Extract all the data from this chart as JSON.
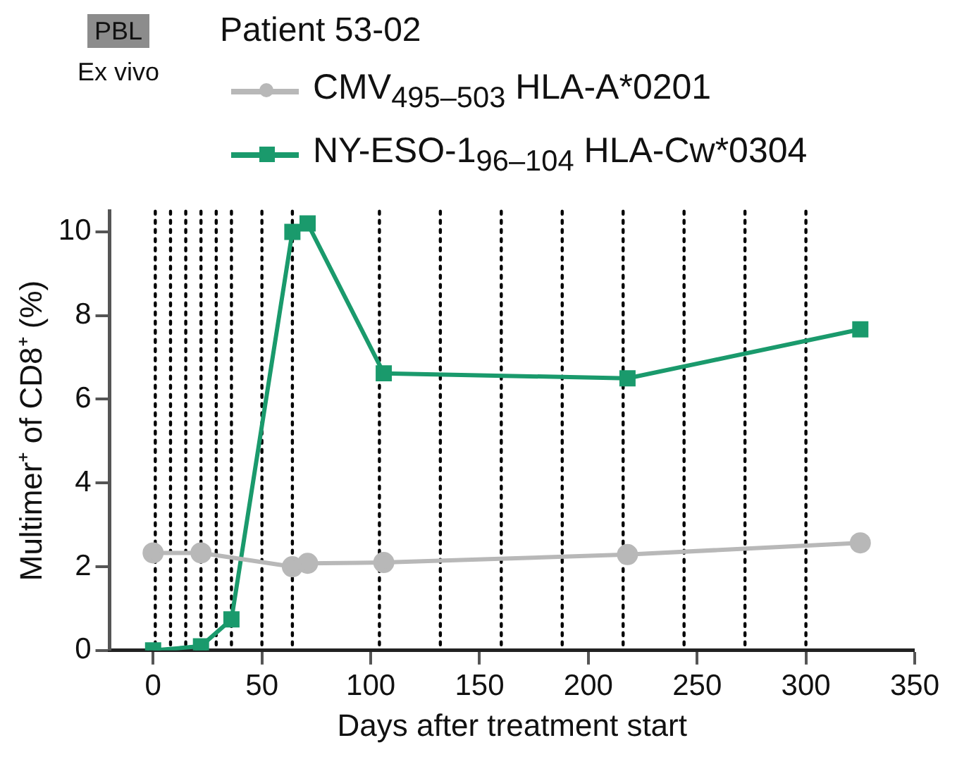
{
  "chart_data": {
    "type": "line",
    "title": "Patient 53-02",
    "annotations": [
      "PBL",
      "Ex vivo"
    ],
    "xlabel": "Days after treatment start",
    "ylabel": "Multimer⁺ of CD8⁺ (%)",
    "series": [
      {
        "name": "CMV$_{495–503}$ HLA-A*0201",
        "color": "#b8b8b8",
        "marker": "circle",
        "x": [
          0,
          22,
          64,
          71,
          106,
          218,
          325
        ],
        "values": [
          2.33,
          2.33,
          2.0,
          2.08,
          2.1,
          2.29,
          2.57
        ]
      },
      {
        "name": "NY-ESO-1$_{96–104}$ HLA-Cw*0304",
        "color": "#1a9a6c",
        "marker": "square",
        "x": [
          0,
          22,
          36,
          64,
          71,
          106,
          218,
          325
        ],
        "values": [
          0,
          0.1,
          0.74,
          10.0,
          10.2,
          6.62,
          6.5,
          7.67
        ]
      }
    ],
    "ref_lines": [
      {
        "axis": "x",
        "value": 1,
        "color": "#000000",
        "line_style": "dotted"
      },
      {
        "axis": "x",
        "value": 8,
        "color": "#000000",
        "line_style": "dotted"
      },
      {
        "axis": "x",
        "value": 15,
        "color": "#000000",
        "line_style": "dotted"
      },
      {
        "axis": "x",
        "value": 22,
        "color": "#000000",
        "line_style": "dotted"
      },
      {
        "axis": "x",
        "value": 29,
        "color": "#000000",
        "line_style": "dotted"
      },
      {
        "axis": "x",
        "value": 36,
        "color": "#000000",
        "line_style": "dotted"
      },
      {
        "axis": "x",
        "value": 50,
        "color": "#000000",
        "line_style": "dotted"
      },
      {
        "axis": "x",
        "value": 64,
        "color": "#000000",
        "line_style": "dotted"
      },
      {
        "axis": "x",
        "value": 104,
        "color": "#000000",
        "line_style": "dotted"
      },
      {
        "axis": "x",
        "value": 132,
        "color": "#000000",
        "line_style": "dotted"
      },
      {
        "axis": "x",
        "value": 160,
        "color": "#000000",
        "line_style": "dotted"
      },
      {
        "axis": "x",
        "value": 188,
        "color": "#000000",
        "line_style": "dotted"
      },
      {
        "axis": "x",
        "value": 216,
        "color": "#000000",
        "line_style": "dotted"
      },
      {
        "axis": "x",
        "value": 244,
        "color": "#000000",
        "line_style": "dotted"
      },
      {
        "axis": "x",
        "value": 272,
        "color": "#000000",
        "line_style": "dotted"
      },
      {
        "axis": "x",
        "value": 300,
        "color": "#000000",
        "line_style": "dotted"
      }
    ],
    "xlim": [
      -20,
      350
    ],
    "xticks": [
      0,
      50,
      100,
      150,
      200,
      250,
      300,
      350
    ],
    "ylim": [
      0,
      10.5
    ],
    "yticks": [
      0,
      2,
      4,
      6,
      8,
      10
    ],
    "grid": false,
    "legend": "top left",
    "line_style": "solid"
  }
}
